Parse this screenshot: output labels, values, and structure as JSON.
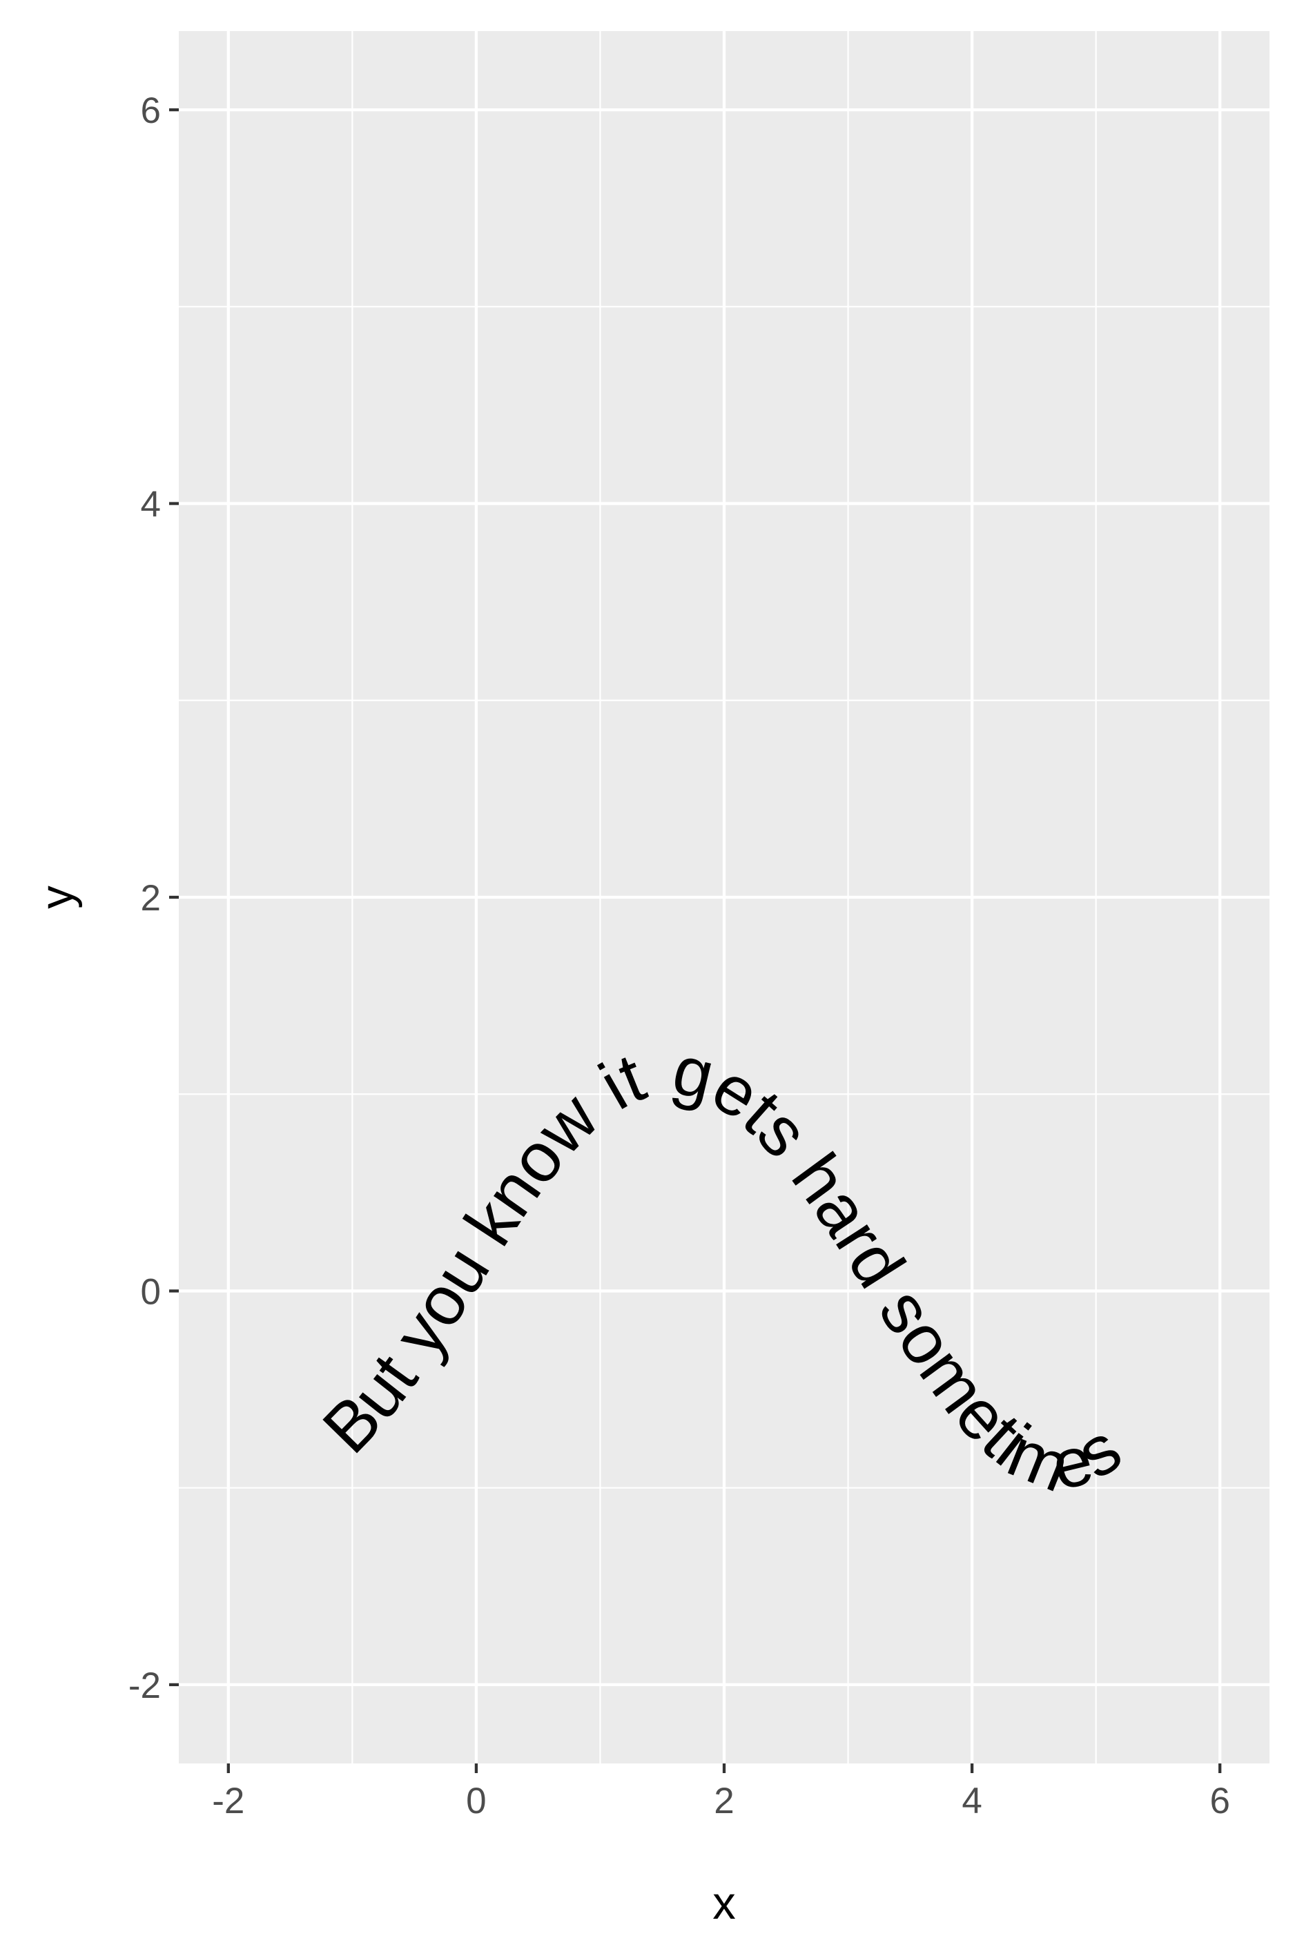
{
  "chart_data": {
    "type": "line",
    "title": "",
    "xlabel": "x",
    "ylabel": "y",
    "xlim": [
      -2.4,
      6.4
    ],
    "ylim": [
      -2.4,
      6.4
    ],
    "x_ticks": [
      -2,
      0,
      2,
      4,
      6
    ],
    "y_ticks": [
      -2,
      0,
      2,
      4,
      6
    ],
    "x_tick_labels": [
      "-2",
      "0",
      "2",
      "4",
      "6"
    ],
    "y_tick_labels": [
      "-2",
      "0",
      "2",
      "4",
      "6"
    ],
    "x_minor_ticks": [
      -1,
      1,
      3,
      5
    ],
    "y_minor_ticks": [
      -1,
      1,
      3,
      5
    ],
    "grid": true,
    "legend": "none",
    "curve_function": "sin(x)",
    "x_range": [
      -1,
      6.4
    ],
    "text_label": "But you know it gets hard sometimes",
    "text_color": "#000000",
    "panel_color": "#EBEBEB",
    "grid_color": "#FFFFFF"
  }
}
